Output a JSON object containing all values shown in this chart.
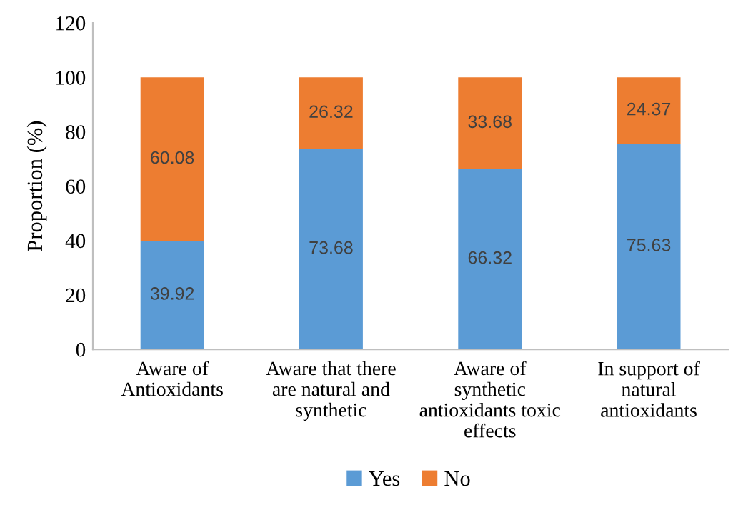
{
  "chart_data": {
    "type": "bar",
    "stacked": true,
    "ylabel": "Proportion (%)",
    "categories": [
      "Aware of\nAntioxidants",
      "Aware that there\nare natural and\nsynthetic",
      "Aware of\nsynthetic\nantioxidants toxic\neffects",
      "In support of\nnatural\nantioxidants"
    ],
    "series": [
      {
        "name": "Yes",
        "color": "#5b9bd5",
        "values": [
          39.92,
          73.68,
          66.32,
          75.63
        ]
      },
      {
        "name": "No",
        "color": "#ed7d31",
        "values": [
          60.08,
          26.32,
          33.68,
          24.37
        ]
      }
    ],
    "ylim": [
      0,
      120
    ],
    "yticks": [
      0,
      20,
      40,
      60,
      80,
      100,
      120
    ],
    "grid": false,
    "legend": "bottom",
    "data_labels": true
  }
}
